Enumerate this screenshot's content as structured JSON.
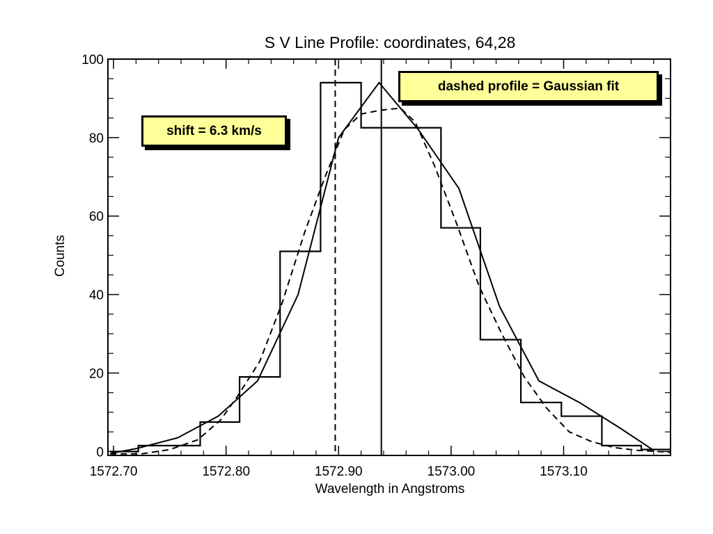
{
  "chart_data": {
    "type": "line",
    "title": "S V Line Profile: coordinates, 64,28",
    "xlabel": "Wavelength in Angstroms",
    "ylabel": "Counts",
    "xlim": [
      1572.695,
      1573.195
    ],
    "ylim": [
      -1,
      100
    ],
    "x_ticks": [
      1572.7,
      1572.8,
      1572.9,
      1573.0,
      1573.1
    ],
    "x_tick_labels": [
      "1572.70",
      "1572.80",
      "1572.90",
      "1573.00",
      "1573.10"
    ],
    "y_ticks": [
      0,
      20,
      40,
      60,
      80,
      100
    ],
    "y_tick_labels": [
      "0",
      "20",
      "40",
      "60",
      "80",
      "100"
    ],
    "grid": false,
    "series": [
      {
        "style": "histogram",
        "x": [
          1572.697,
          1572.722,
          1572.741,
          1572.777,
          1572.812,
          1572.848,
          1572.884,
          1572.92,
          1572.955,
          1572.991,
          1573.026,
          1573.062,
          1573.098,
          1573.134,
          1573.169,
          1573.195
        ],
        "y": [
          0,
          1.5,
          1.5,
          7.5,
          19,
          51,
          94,
          82.5,
          82.5,
          57,
          28.5,
          12.5,
          9,
          1.5,
          0.5,
          0.5
        ]
      },
      {
        "style": "solid",
        "x": [
          1572.697,
          1572.721,
          1572.757,
          1572.793,
          1572.828,
          1572.864,
          1572.9,
          1572.936,
          1572.971,
          1573.007,
          1573.043,
          1573.078,
          1573.114,
          1573.15,
          1573.18
        ],
        "y": [
          -0.5,
          0.8,
          3.5,
          9,
          18,
          40,
          80,
          94,
          82,
          67,
          37,
          18,
          12.5,
          6,
          0.3
        ]
      },
      {
        "style": "dashed",
        "x": [
          1572.697,
          1572.725,
          1572.75,
          1572.775,
          1572.795,
          1572.81,
          1572.83,
          1572.85,
          1572.87,
          1572.888,
          1572.905,
          1572.92,
          1572.938,
          1572.955,
          1572.968,
          1572.985,
          1573.005,
          1573.025,
          1573.045,
          1573.065,
          1573.085,
          1573.105,
          1573.125,
          1573.145,
          1573.165,
          1573.195
        ],
        "y": [
          -0.6,
          -0.6,
          0.5,
          3,
          8,
          14,
          23,
          38,
          56,
          70,
          82,
          86,
          87,
          87.5,
          84,
          73,
          58,
          42,
          30,
          19,
          11,
          5,
          2.5,
          1,
          0.3,
          -0.2
        ]
      }
    ],
    "vlines": [
      {
        "x": 1572.897,
        "style": "dashed"
      },
      {
        "x": 1572.938,
        "style": "solid"
      }
    ],
    "annotations": [
      {
        "text": "shift = 6.3 km/s",
        "placement": "upper-left"
      },
      {
        "text": "dashed profile = Gaussian fit",
        "placement": "upper-right"
      }
    ]
  }
}
